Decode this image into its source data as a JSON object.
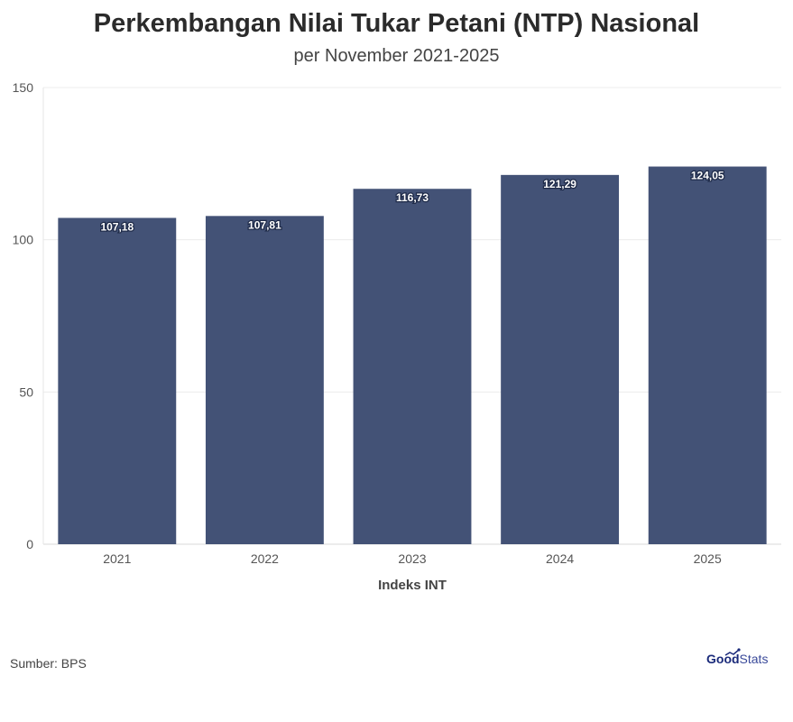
{
  "header": {
    "title": "Perkembangan Nilai Tukar Petani (NTP) Nasional",
    "subtitle": "per November 2021-2025"
  },
  "footer": {
    "source": "Sumber: BPS",
    "logo_good": "Good",
    "logo_stats": "Stats"
  },
  "chart_data": {
    "type": "bar",
    "title": "Perkembangan Nilai Tukar Petani (NTP) Nasional",
    "subtitle": "per November 2021-2025",
    "xlabel": "Indeks INT",
    "ylabel": "",
    "categories": [
      "2021",
      "2022",
      "2023",
      "2024",
      "2025"
    ],
    "values": [
      107.18,
      107.81,
      116.73,
      121.29,
      124.05
    ],
    "data_labels": [
      "107,18",
      "107,81",
      "116,73",
      "121,29",
      "124,05"
    ],
    "ylim": [
      0,
      150
    ],
    "yticks": [
      0,
      50,
      100,
      150
    ],
    "grid": true,
    "bar_color": "#3d4c72"
  }
}
